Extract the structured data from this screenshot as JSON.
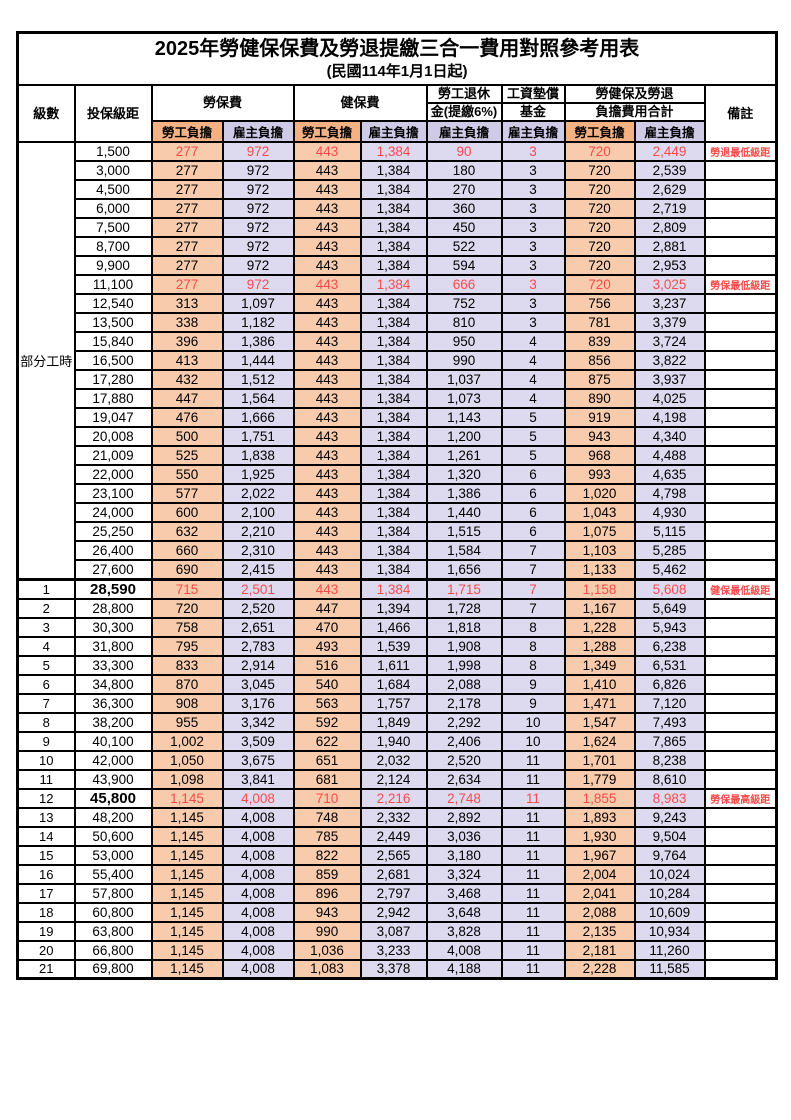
{
  "page": {
    "title": "2025年勞健保保費及勞退提繳三合一費用對照參考用表",
    "subtitle": "(民國114年1月1日起)"
  },
  "colors": {
    "employee_cell_bg": "#F8CBAD",
    "employer_cell_bg": "#DDDAF0",
    "header_employee_bg": "#F4B183",
    "header_employer_bg": "#CFCAE6",
    "highlight_text": "#FB4A4A",
    "border": "#000000"
  },
  "table": {
    "headers": {
      "level": "級數",
      "bracket": "投保級距",
      "labor_fee": "勞保費",
      "health_fee": "健保費",
      "pension_line1": "勞工退休",
      "pension_line2": "金(提繳6%)",
      "wage_fund_line1": "工資墊償",
      "wage_fund_line2": "基金",
      "total_line1": "勞健保及勞退",
      "total_line2": "負擔費用合計",
      "employee": "勞工負擔",
      "employer": "雇主負擔",
      "note": "備註"
    },
    "part_time_label": "部分工時",
    "rows": [
      {
        "level": "",
        "bracket": "1,500",
        "v": [
          "277",
          "972",
          "443",
          "1,384",
          "90",
          "3",
          "720",
          "2,449"
        ],
        "note": "勞退最低級距",
        "hl": true,
        "bold": false
      },
      {
        "level": "",
        "bracket": "3,000",
        "v": [
          "277",
          "972",
          "443",
          "1,384",
          "180",
          "3",
          "720",
          "2,539"
        ],
        "note": "",
        "hl": false,
        "bold": false
      },
      {
        "level": "",
        "bracket": "4,500",
        "v": [
          "277",
          "972",
          "443",
          "1,384",
          "270",
          "3",
          "720",
          "2,629"
        ],
        "note": "",
        "hl": false,
        "bold": false
      },
      {
        "level": "",
        "bracket": "6,000",
        "v": [
          "277",
          "972",
          "443",
          "1,384",
          "360",
          "3",
          "720",
          "2,719"
        ],
        "note": "",
        "hl": false,
        "bold": false
      },
      {
        "level": "",
        "bracket": "7,500",
        "v": [
          "277",
          "972",
          "443",
          "1,384",
          "450",
          "3",
          "720",
          "2,809"
        ],
        "note": "",
        "hl": false,
        "bold": false
      },
      {
        "level": "",
        "bracket": "8,700",
        "v": [
          "277",
          "972",
          "443",
          "1,384",
          "522",
          "3",
          "720",
          "2,881"
        ],
        "note": "",
        "hl": false,
        "bold": false
      },
      {
        "level": "",
        "bracket": "9,900",
        "v": [
          "277",
          "972",
          "443",
          "1,384",
          "594",
          "3",
          "720",
          "2,953"
        ],
        "note": "",
        "hl": false,
        "bold": false
      },
      {
        "level": "",
        "bracket": "11,100",
        "v": [
          "277",
          "972",
          "443",
          "1,384",
          "666",
          "3",
          "720",
          "3,025"
        ],
        "note": "勞保最低級距",
        "hl": true,
        "bold": false
      },
      {
        "level": "",
        "bracket": "12,540",
        "v": [
          "313",
          "1,097",
          "443",
          "1,384",
          "752",
          "3",
          "756",
          "3,237"
        ],
        "note": "",
        "hl": false,
        "bold": false
      },
      {
        "level": "",
        "bracket": "13,500",
        "v": [
          "338",
          "1,182",
          "443",
          "1,384",
          "810",
          "3",
          "781",
          "3,379"
        ],
        "note": "",
        "hl": false,
        "bold": false
      },
      {
        "level": "",
        "bracket": "15,840",
        "v": [
          "396",
          "1,386",
          "443",
          "1,384",
          "950",
          "4",
          "839",
          "3,724"
        ],
        "note": "",
        "hl": false,
        "bold": false
      },
      {
        "level": "",
        "bracket": "16,500",
        "v": [
          "413",
          "1,444",
          "443",
          "1,384",
          "990",
          "4",
          "856",
          "3,822"
        ],
        "note": "",
        "hl": false,
        "bold": false
      },
      {
        "level": "",
        "bracket": "17,280",
        "v": [
          "432",
          "1,512",
          "443",
          "1,384",
          "1,037",
          "4",
          "875",
          "3,937"
        ],
        "note": "",
        "hl": false,
        "bold": false
      },
      {
        "level": "",
        "bracket": "17,880",
        "v": [
          "447",
          "1,564",
          "443",
          "1,384",
          "1,073",
          "4",
          "890",
          "4,025"
        ],
        "note": "",
        "hl": false,
        "bold": false
      },
      {
        "level": "",
        "bracket": "19,047",
        "v": [
          "476",
          "1,666",
          "443",
          "1,384",
          "1,143",
          "5",
          "919",
          "4,198"
        ],
        "note": "",
        "hl": false,
        "bold": false
      },
      {
        "level": "",
        "bracket": "20,008",
        "v": [
          "500",
          "1,751",
          "443",
          "1,384",
          "1,200",
          "5",
          "943",
          "4,340"
        ],
        "note": "",
        "hl": false,
        "bold": false
      },
      {
        "level": "",
        "bracket": "21,009",
        "v": [
          "525",
          "1,838",
          "443",
          "1,384",
          "1,261",
          "5",
          "968",
          "4,488"
        ],
        "note": "",
        "hl": false,
        "bold": false
      },
      {
        "level": "",
        "bracket": "22,000",
        "v": [
          "550",
          "1,925",
          "443",
          "1,384",
          "1,320",
          "6",
          "993",
          "4,635"
        ],
        "note": "",
        "hl": false,
        "bold": false
      },
      {
        "level": "",
        "bracket": "23,100",
        "v": [
          "577",
          "2,022",
          "443",
          "1,384",
          "1,386",
          "6",
          "1,020",
          "4,798"
        ],
        "note": "",
        "hl": false,
        "bold": false
      },
      {
        "level": "",
        "bracket": "24,000",
        "v": [
          "600",
          "2,100",
          "443",
          "1,384",
          "1,440",
          "6",
          "1,043",
          "4,930"
        ],
        "note": "",
        "hl": false,
        "bold": false
      },
      {
        "level": "",
        "bracket": "25,250",
        "v": [
          "632",
          "2,210",
          "443",
          "1,384",
          "1,515",
          "6",
          "1,075",
          "5,115"
        ],
        "note": "",
        "hl": false,
        "bold": false
      },
      {
        "level": "",
        "bracket": "26,400",
        "v": [
          "660",
          "2,310",
          "443",
          "1,384",
          "1,584",
          "7",
          "1,103",
          "5,285"
        ],
        "note": "",
        "hl": false,
        "bold": false
      },
      {
        "level": "",
        "bracket": "27,600",
        "v": [
          "690",
          "2,415",
          "443",
          "1,384",
          "1,656",
          "7",
          "1,133",
          "5,462"
        ],
        "note": "",
        "hl": false,
        "bold": false
      },
      {
        "level": "1",
        "bracket": "28,590",
        "v": [
          "715",
          "2,501",
          "443",
          "1,384",
          "1,715",
          "7",
          "1,158",
          "5,608"
        ],
        "note": "健保最低級距",
        "hl": true,
        "bold": true
      },
      {
        "level": "2",
        "bracket": "28,800",
        "v": [
          "720",
          "2,520",
          "447",
          "1,394",
          "1,728",
          "7",
          "1,167",
          "5,649"
        ],
        "note": "",
        "hl": false,
        "bold": false
      },
      {
        "level": "3",
        "bracket": "30,300",
        "v": [
          "758",
          "2,651",
          "470",
          "1,466",
          "1,818",
          "8",
          "1,228",
          "5,943"
        ],
        "note": "",
        "hl": false,
        "bold": false
      },
      {
        "level": "4",
        "bracket": "31,800",
        "v": [
          "795",
          "2,783",
          "493",
          "1,539",
          "1,908",
          "8",
          "1,288",
          "6,238"
        ],
        "note": "",
        "hl": false,
        "bold": false
      },
      {
        "level": "5",
        "bracket": "33,300",
        "v": [
          "833",
          "2,914",
          "516",
          "1,611",
          "1,998",
          "8",
          "1,349",
          "6,531"
        ],
        "note": "",
        "hl": false,
        "bold": false
      },
      {
        "level": "6",
        "bracket": "34,800",
        "v": [
          "870",
          "3,045",
          "540",
          "1,684",
          "2,088",
          "9",
          "1,410",
          "6,826"
        ],
        "note": "",
        "hl": false,
        "bold": false
      },
      {
        "level": "7",
        "bracket": "36,300",
        "v": [
          "908",
          "3,176",
          "563",
          "1,757",
          "2,178",
          "9",
          "1,471",
          "7,120"
        ],
        "note": "",
        "hl": false,
        "bold": false
      },
      {
        "level": "8",
        "bracket": "38,200",
        "v": [
          "955",
          "3,342",
          "592",
          "1,849",
          "2,292",
          "10",
          "1,547",
          "7,493"
        ],
        "note": "",
        "hl": false,
        "bold": false
      },
      {
        "level": "9",
        "bracket": "40,100",
        "v": [
          "1,002",
          "3,509",
          "622",
          "1,940",
          "2,406",
          "10",
          "1,624",
          "7,865"
        ],
        "note": "",
        "hl": false,
        "bold": false
      },
      {
        "level": "10",
        "bracket": "42,000",
        "v": [
          "1,050",
          "3,675",
          "651",
          "2,032",
          "2,520",
          "11",
          "1,701",
          "8,238"
        ],
        "note": "",
        "hl": false,
        "bold": false
      },
      {
        "level": "11",
        "bracket": "43,900",
        "v": [
          "1,098",
          "3,841",
          "681",
          "2,124",
          "2,634",
          "11",
          "1,779",
          "8,610"
        ],
        "note": "",
        "hl": false,
        "bold": false
      },
      {
        "level": "12",
        "bracket": "45,800",
        "v": [
          "1,145",
          "4,008",
          "710",
          "2,216",
          "2,748",
          "11",
          "1,855",
          "8,983"
        ],
        "note": "勞保最高級距",
        "hl": true,
        "bold": true
      },
      {
        "level": "13",
        "bracket": "48,200",
        "v": [
          "1,145",
          "4,008",
          "748",
          "2,332",
          "2,892",
          "11",
          "1,893",
          "9,243"
        ],
        "note": "",
        "hl": false,
        "bold": false
      },
      {
        "level": "14",
        "bracket": "50,600",
        "v": [
          "1,145",
          "4,008",
          "785",
          "2,449",
          "3,036",
          "11",
          "1,930",
          "9,504"
        ],
        "note": "",
        "hl": false,
        "bold": false
      },
      {
        "level": "15",
        "bracket": "53,000",
        "v": [
          "1,145",
          "4,008",
          "822",
          "2,565",
          "3,180",
          "11",
          "1,967",
          "9,764"
        ],
        "note": "",
        "hl": false,
        "bold": false
      },
      {
        "level": "16",
        "bracket": "55,400",
        "v": [
          "1,145",
          "4,008",
          "859",
          "2,681",
          "3,324",
          "11",
          "2,004",
          "10,024"
        ],
        "note": "",
        "hl": false,
        "bold": false
      },
      {
        "level": "17",
        "bracket": "57,800",
        "v": [
          "1,145",
          "4,008",
          "896",
          "2,797",
          "3,468",
          "11",
          "2,041",
          "10,284"
        ],
        "note": "",
        "hl": false,
        "bold": false
      },
      {
        "level": "18",
        "bracket": "60,800",
        "v": [
          "1,145",
          "4,008",
          "943",
          "2,942",
          "3,648",
          "11",
          "2,088",
          "10,609"
        ],
        "note": "",
        "hl": false,
        "bold": false
      },
      {
        "level": "19",
        "bracket": "63,800",
        "v": [
          "1,145",
          "4,008",
          "990",
          "3,087",
          "3,828",
          "11",
          "2,135",
          "10,934"
        ],
        "note": "",
        "hl": false,
        "bold": false
      },
      {
        "level": "20",
        "bracket": "66,800",
        "v": [
          "1,145",
          "4,008",
          "1,036",
          "3,233",
          "4,008",
          "11",
          "2,181",
          "11,260"
        ],
        "note": "",
        "hl": false,
        "bold": false
      },
      {
        "level": "21",
        "bracket": "69,800",
        "v": [
          "1,145",
          "4,008",
          "1,083",
          "3,378",
          "4,188",
          "11",
          "2,228",
          "11,585"
        ],
        "note": "",
        "hl": false,
        "bold": false
      }
    ]
  }
}
